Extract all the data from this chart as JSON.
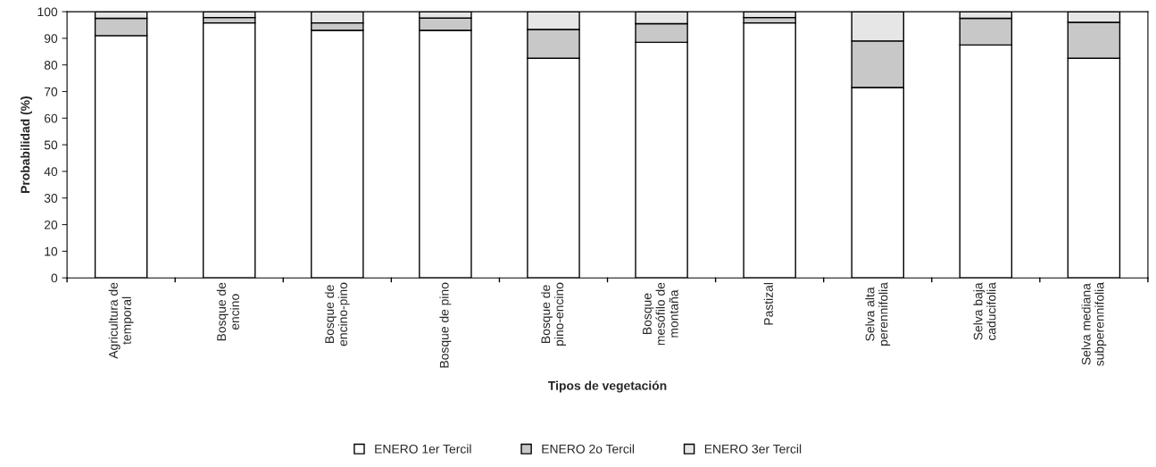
{
  "chart_data": {
    "type": "bar",
    "stacked": true,
    "xlabel": "Tipos de vegetación",
    "ylabel": "Probabilidad (%)",
    "categories": [
      "Agricultura de\ntemporal",
      "Bosque de\nencino",
      "Bosque de\nencino-pino",
      "Bosque de pino",
      "Bosque de\npino-encino",
      "Bosque\nmesófilo de\nmontaña",
      "Pastizal",
      "Selva alta\nperennifolia",
      "Selva baja\ncaducifolia",
      "Selva mediana\nsubperennifolia"
    ],
    "series": [
      {
        "name": "ENERO 1er Tercil",
        "color": "#ffffff",
        "values": [
          91,
          95.8,
          93,
          93,
          82.5,
          88.5,
          95.8,
          71.5,
          87.5,
          82.5
        ]
      },
      {
        "name": "ENERO 2o Tercil",
        "color": "#c8c8c8",
        "values": [
          6.5,
          2,
          2.8,
          4.6,
          10.8,
          7,
          2,
          17.5,
          10,
          13.5
        ]
      },
      {
        "name": "ENERO 3er Tercil",
        "color": "#e6e6e6",
        "values": [
          2.5,
          2.2,
          4.2,
          2.4,
          6.7,
          4.5,
          2.2,
          11,
          2.5,
          4
        ]
      }
    ],
    "ylim": [
      0,
      100
    ],
    "yticks": [
      0,
      10,
      20,
      30,
      40,
      50,
      60,
      70,
      80,
      90,
      100
    ],
    "grid": false,
    "legend": "bottom"
  }
}
